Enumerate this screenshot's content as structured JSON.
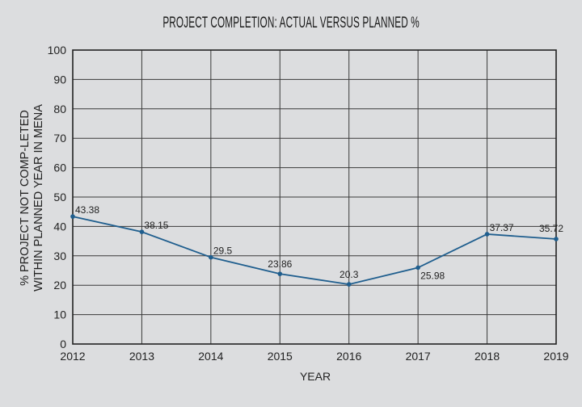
{
  "chart_data": {
    "type": "line",
    "title": "PROJECT COMPLETION: ACTUAL VERSUS PLANNED %",
    "xlabel": "YEAR",
    "ylabel_lines": [
      "% PROJECT NOT COMP-LETED",
      "WITHIN PLANNED YEAR IN MENA"
    ],
    "x": [
      "2012",
      "2013",
      "2014",
      "2015",
      "2016",
      "2017",
      "2018",
      "2019"
    ],
    "series": [
      {
        "name": "% not completed",
        "values": [
          43.38,
          38.15,
          29.5,
          23.86,
          20.3,
          25.98,
          37.37,
          35.72
        ],
        "color": "#1f5e8e"
      }
    ],
    "data_labels": [
      "43.38",
      "38.15",
      "29.5",
      "23.86",
      "20.3",
      "25.98",
      "37.37",
      "35.72"
    ],
    "yticks": [
      "0",
      "10",
      "20",
      "30",
      "40",
      "50",
      "60",
      "70",
      "80",
      "90",
      "100"
    ],
    "ylim": [
      0,
      100
    ],
    "grid": true
  }
}
